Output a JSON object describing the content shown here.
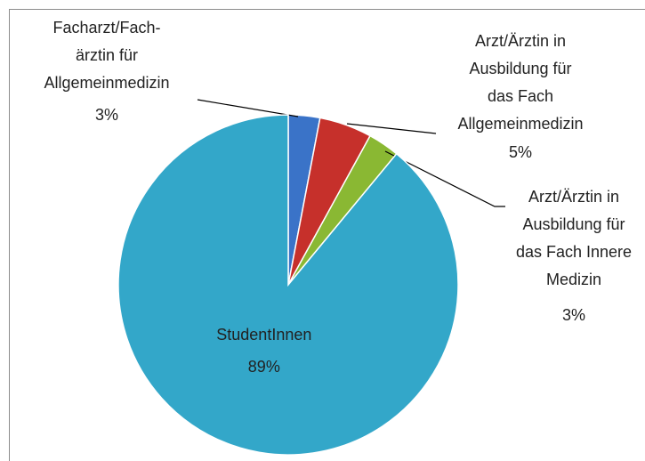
{
  "chart_data": {
    "type": "pie",
    "categories": [
      "Facharzt/Fach-\närztin für\nAllgemeinmedizin",
      "Arzt/Ärztin in\nAusbildung für\ndas Fach\nAllgemeinmedizin",
      "Arzt/Ärztin in\nAusbildung für\ndas Fach Innere\nMedizin",
      "StudentInnen"
    ],
    "values": [
      3,
      5,
      3,
      89
    ],
    "value_labels": [
      "3%",
      "5%",
      "3%",
      "89%"
    ],
    "colors": [
      "#3a73c8",
      "#c6302b",
      "#8ab833",
      "#33a7c9"
    ]
  }
}
